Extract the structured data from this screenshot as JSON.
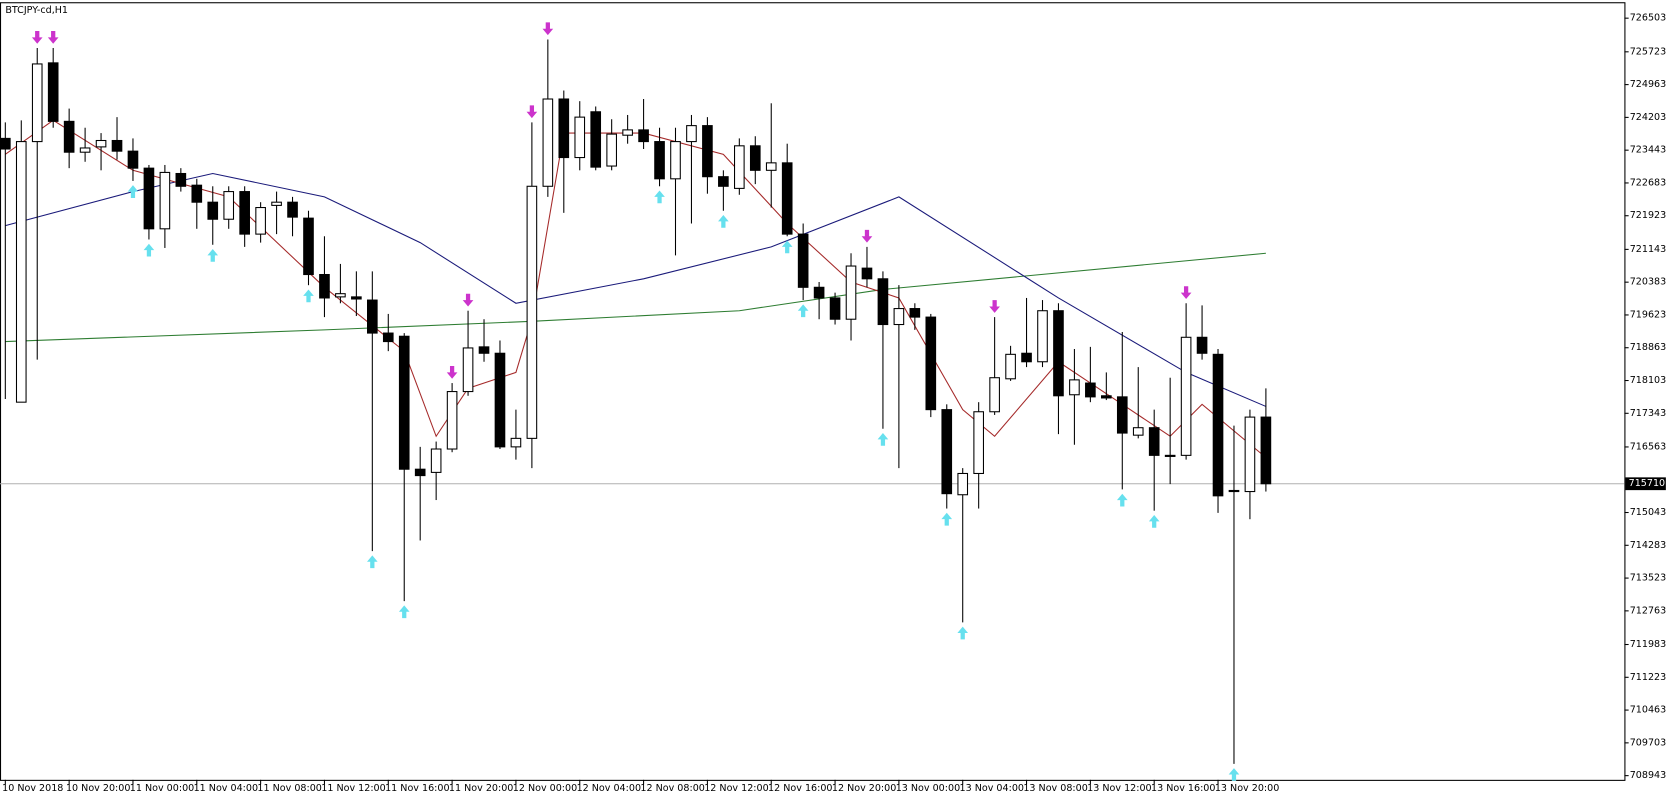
{
  "chart_data": {
    "type": "candlestick",
    "title": "BTCJPY-cd,H1",
    "ylim": [
      708846,
      726873
    ],
    "yticks": [
      726503,
      725723,
      724963,
      724203,
      723443,
      722683,
      721923,
      721143,
      720383,
      719623,
      718863,
      718103,
      717343,
      716563,
      715043,
      714283,
      713523,
      712763,
      711983,
      711223,
      710463,
      709703,
      708943
    ],
    "xticks": [
      {
        "value": 0,
        "label": "10 Nov 2018"
      },
      {
        "value": 4,
        "label": "10 Nov 20:00"
      },
      {
        "value": 8,
        "label": "11 Nov 00:00"
      },
      {
        "value": 12,
        "label": "11 Nov 04:00"
      },
      {
        "value": 16,
        "label": "11 Nov 08:00"
      },
      {
        "value": 20,
        "label": "11 Nov 12:00"
      },
      {
        "value": 24,
        "label": "11 Nov 16:00"
      },
      {
        "value": 28,
        "label": "11 Nov 20:00"
      },
      {
        "value": 32,
        "label": "12 Nov 00:00"
      },
      {
        "value": 36,
        "label": "12 Nov 04:00"
      },
      {
        "value": 40,
        "label": "12 Nov 08:00"
      },
      {
        "value": 44,
        "label": "12 Nov 12:00"
      },
      {
        "value": 48,
        "label": "12 Nov 16:00"
      },
      {
        "value": 52,
        "label": "12 Nov 20:00"
      },
      {
        "value": 56,
        "label": "13 Nov 00:00"
      },
      {
        "value": 60,
        "label": "13 Nov 04:00"
      },
      {
        "value": 64,
        "label": "13 Nov 08:00"
      },
      {
        "value": 68,
        "label": "13 Nov 12:00"
      },
      {
        "value": 72,
        "label": "13 Nov 16:00"
      },
      {
        "value": 76,
        "label": "13 Nov 20:00"
      }
    ],
    "up_color": "#ffffff",
    "down_color": "#000000",
    "open": [
      723716,
      717601,
      723642,
      725467,
      724111,
      723396,
      723519,
      723667,
      723420,
      723026,
      721620,
      722902,
      722631,
      722237,
      721842,
      722483,
      721497,
      722163,
      722237,
      721867,
      720560,
      720042,
      720042,
      719968,
      719203,
      719129,
      716047,
      715973,
      716515,
      717847,
      718883,
      718735,
      716565,
      716762,
      722606,
      724629,
      723272,
      724333,
      723075,
      723790,
      723913,
      723642,
      722779,
      723642,
      724012,
      722828,
      722557,
      723544,
      722976,
      723149,
      721497,
      720264,
      720017,
      719524,
      720708,
      720461,
      719401,
      719771,
      719573,
      717428,
      715455,
      715948,
      717379,
      718143,
      718735,
      718538,
      719721,
      717773,
      718044,
      717749,
      717724,
      716836,
      717009,
      716368,
      716368,
      719105,
      718710,
      715554,
      715529,
      717255
    ],
    "high": [
      724086,
      724135,
      725812,
      725812,
      724407,
      723963,
      723839,
      724209,
      723716,
      723100,
      723100,
      723026,
      722779,
      722606,
      722606,
      722606,
      722237,
      722483,
      722360,
      722039,
      721447,
      720806,
      720634,
      720634,
      719647,
      719203,
      716565,
      716688,
      718044,
      719721,
      719524,
      719031,
      717428,
      724086,
      726010,
      724826,
      724579,
      724456,
      724160,
      724259,
      724629,
      723963,
      723963,
      724259,
      724209,
      722976,
      723716,
      723766,
      724530,
      723593,
      721743,
      720387,
      720140,
      721053,
      721201,
      720634,
      720313,
      719894,
      719647,
      717551,
      716072,
      717601,
      719573,
      718907,
      720017,
      719968,
      719894,
      718834,
      718883,
      718291,
      719228,
      718414,
      717428,
      718168,
      719894,
      719845,
      718834,
      717058,
      717428,
      717921
    ],
    "low": [
      717674,
      717601,
      718587,
      723963,
      723026,
      723174,
      722976,
      723223,
      722730,
      721373,
      721176,
      722483,
      721620,
      721250,
      721620,
      721201,
      721300,
      721497,
      721447,
      720313,
      719573,
      719894,
      719598,
      714148,
      718784,
      712989,
      714395,
      715332,
      716441,
      717749,
      718538,
      716515,
      716269,
      716072,
      722360,
      721990,
      722976,
      722976,
      722976,
      723593,
      723470,
      722606,
      721004,
      721743,
      722434,
      722039,
      722409,
      722656,
      722113,
      721447,
      719968,
      719524,
      719401,
      719031,
      720264,
      716984,
      716072,
      719277,
      717255,
      715135,
      712496,
      715135,
      717305,
      718094,
      718414,
      718414,
      716861,
      716614,
      717601,
      717650,
      715578,
      716762,
      715085,
      715702,
      716269,
      718587,
      715036,
      709216,
      714888,
      715529
    ],
    "close": [
      723470,
      723642,
      725442,
      724111,
      723396,
      723494,
      723667,
      723420,
      723026,
      721620,
      722927,
      722606,
      722237,
      721842,
      722483,
      721497,
      722113,
      722237,
      721891,
      720560,
      720017,
      720116,
      719993,
      719203,
      719006,
      716047,
      715899,
      716515,
      717847,
      718858,
      718735,
      716565,
      716762,
      722606,
      724629,
      723272,
      724209,
      723050,
      723815,
      723913,
      723642,
      722779,
      723642,
      724012,
      722828,
      722606,
      723544,
      722976,
      723149,
      721497,
      720264,
      720017,
      719524,
      720757,
      720461,
      719401,
      719771,
      719573,
      717428,
      715480,
      715948,
      717379,
      718168,
      718710,
      718538,
      719721,
      717749,
      718118,
      717724,
      717699,
      716885,
      717009,
      716368,
      716343,
      719105,
      718735,
      715430,
      715529,
      717255,
      715710
    ],
    "indicators": [
      {
        "color": "#2e7d32",
        "x": [
          0,
          20,
          33,
          46,
          55,
          79
        ],
        "values": [
          719006,
          719277,
          719475,
          719721,
          720214,
          721053
        ]
      },
      {
        "color": "#1a1a7a",
        "x": [
          0,
          8,
          13,
          20,
          26,
          32,
          40,
          48,
          56,
          66,
          74,
          79
        ],
        "values": [
          721694,
          722483,
          722902,
          722360,
          721300,
          719894,
          720461,
          721201,
          722360,
          720017,
          718291,
          717502
        ]
      },
      {
        "color": "#a52a2a",
        "x": [
          0,
          3,
          8,
          14,
          20,
          25,
          27,
          29,
          32,
          33,
          35,
          40,
          45,
          49,
          53,
          56,
          60,
          62,
          66,
          70,
          73,
          75,
          79
        ],
        "values": [
          723346,
          724135,
          722976,
          722360,
          720264,
          718784,
          716811,
          717921,
          718291,
          719524,
          723839,
          723839,
          723346,
          721743,
          720387,
          720017,
          717428,
          716811,
          718538,
          717551,
          716811,
          717551,
          716318
        ]
      }
    ],
    "down_arrows": {
      "color": "#cc33cc",
      "bars": [
        2,
        3,
        28,
        29,
        33,
        34,
        54,
        62,
        74
      ]
    },
    "up_arrows": {
      "color": "#66e0ee",
      "bars": [
        8,
        9,
        13,
        19,
        23,
        25,
        41,
        45,
        49,
        50,
        55,
        59,
        60,
        70,
        72,
        77
      ]
    },
    "current_price": 715710
  }
}
